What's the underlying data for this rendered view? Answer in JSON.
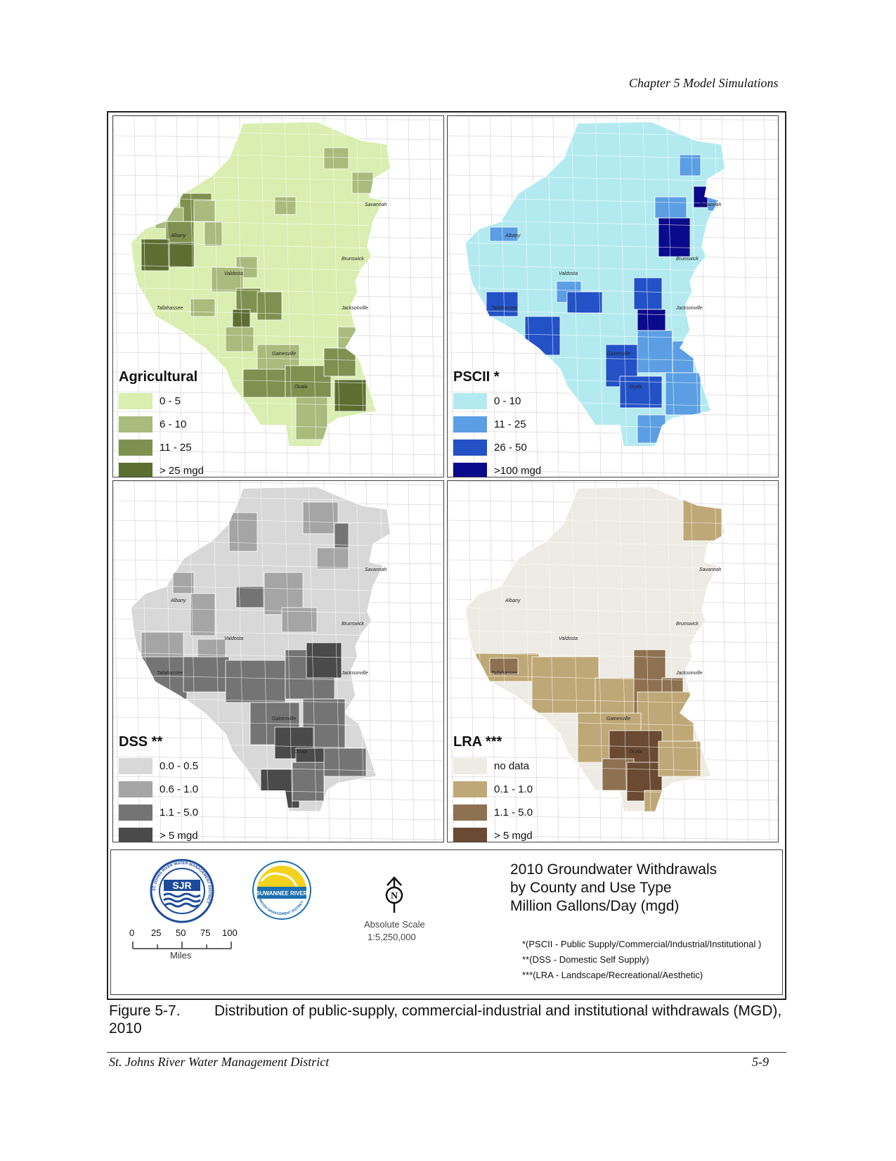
{
  "header": "Chapter 5 Model Simulations",
  "panels": [
    {
      "title": "Agricultural",
      "colors": {
        "base": "#d9eeb0",
        "c2": "#a9bb7d",
        "c3": "#7f9150",
        "c4": "#5d6e33"
      },
      "legend": [
        {
          "label": "0 - 5",
          "color": "#d9eeb0"
        },
        {
          "label": "6 - 10",
          "color": "#a9bb7d"
        },
        {
          "label": "11 - 25",
          "color": "#7f9150"
        },
        {
          "label": "> 25 mgd",
          "color": "#5d6e33"
        }
      ]
    },
    {
      "title": "PSCII *",
      "colors": {
        "base": "#b3eaf0",
        "c2": "#5b9ee3",
        "c3": "#2352c6",
        "c4": "#0a0a8c"
      },
      "legend": [
        {
          "label": "0 - 10",
          "color": "#b3eaf0"
        },
        {
          "label": "11 - 25",
          "color": "#5b9ee3"
        },
        {
          "label": "26 - 50",
          "color": "#2352c6"
        },
        {
          "label": ">100 mgd",
          "color": "#0a0a8c"
        }
      ]
    },
    {
      "title": "DSS **",
      "colors": {
        "base": "#d8d8d8",
        "c2": "#a5a5a5",
        "c3": "#747474",
        "c4": "#4a4a4a"
      },
      "legend": [
        {
          "label": "0.0 - 0.5",
          "color": "#d8d8d8"
        },
        {
          "label": "0.6 - 1.0",
          "color": "#a5a5a5"
        },
        {
          "label": "1.1 - 5.0",
          "color": "#747474"
        },
        {
          "label": "> 5 mgd",
          "color": "#4a4a4a"
        }
      ]
    },
    {
      "title": "LRA ***",
      "colors": {
        "base": "#edebe4",
        "c2": "#bfa877",
        "c3": "#8e7150",
        "c4": "#6a4a32"
      },
      "legend": [
        {
          "label": "no data",
          "color": "#edebe4"
        },
        {
          "label": "0.1 - 1.0",
          "color": "#bfa877"
        },
        {
          "label": "1.1 - 5.0",
          "color": "#8e7150"
        },
        {
          "label": "> 5 mgd",
          "color": "#6a4a32"
        }
      ]
    }
  ],
  "cities": [
    "Savannah",
    "Albany",
    "Brunswick",
    "Valdosta",
    "Tallahassee",
    "Jacksonville",
    "Gainesville",
    "Ocala"
  ],
  "logos": {
    "sjr": {
      "letters": "SJR",
      "ring_text": "ST. JOHNS RIVER WATER MANAGEMENT DISTRICT",
      "color": "#1c4b9c"
    },
    "srwmd": {
      "text": "SUWANNEE RIVER",
      "ring_text": "WATER MANAGEMENT DISTRICT",
      "color": "#1d6fb0",
      "accent": "#f2d21c"
    }
  },
  "scale_bar": {
    "ticks": [
      "0",
      "25",
      "50",
      "75",
      "100"
    ],
    "unit": "Miles"
  },
  "north_arrow": {
    "letter": "N",
    "label": "Absolute Scale",
    "scale": "1:5,250,000"
  },
  "info": {
    "title_lines": [
      "2010 Groundwater Withdrawals",
      "by County and Use Type",
      "Million Gallons/Day (mgd)"
    ],
    "footnotes": [
      "*(PSCII - Public Supply/Commercial/Industrial/Institutional )",
      "**(DSS - Domestic Self Supply)",
      "***(LRA - Landscape/Recreational/Aesthetic)"
    ]
  },
  "caption": {
    "number": "Figure 5-7.",
    "text": "Distribution of public-supply, commercial-industrial and institutional withdrawals (MGD), 2010"
  },
  "footer": {
    "left": "St. Johns River Water Management District",
    "right": "5-9"
  }
}
